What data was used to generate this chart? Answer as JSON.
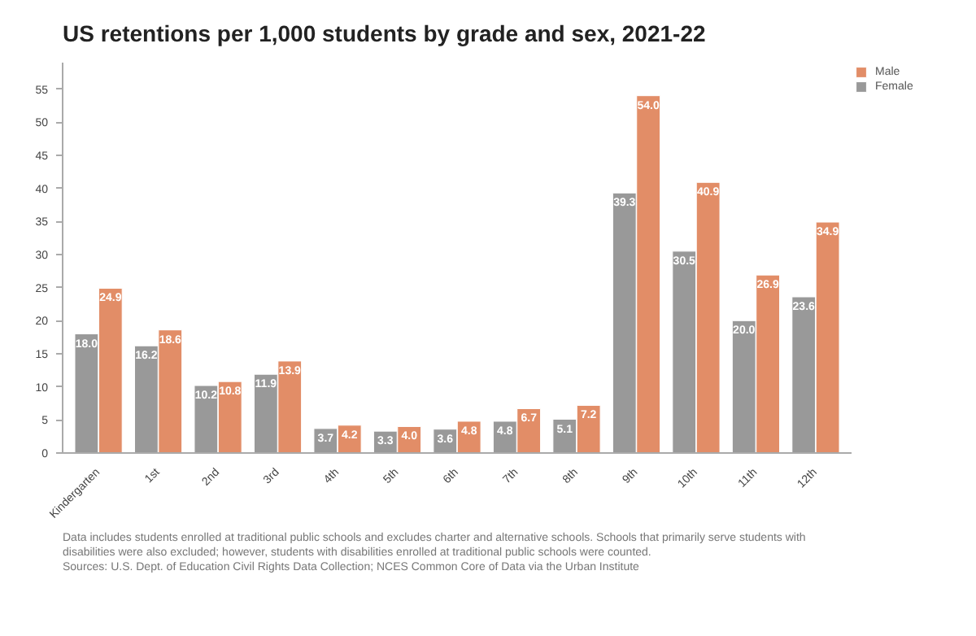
{
  "chart_data": {
    "type": "bar",
    "title": "US retentions per 1,000 students by grade and sex, 2021-22",
    "categories": [
      "Kindergarten",
      "1st",
      "2nd",
      "3rd",
      "4th",
      "5th",
      "6th",
      "7th",
      "8th",
      "9th",
      "10th",
      "11th",
      "12th"
    ],
    "series": [
      {
        "name": "Female",
        "color": "#999999",
        "values": [
          18.0,
          16.2,
          10.2,
          11.9,
          3.7,
          3.3,
          3.6,
          4.8,
          5.1,
          39.3,
          30.5,
          20.0,
          23.6
        ],
        "value_labels": [
          "18.0",
          "16.2",
          "10.2",
          "11.9",
          "3.7",
          "3.3",
          "3.6",
          "4.8",
          "5.1",
          "39.3",
          "30.5",
          "20.0",
          "23.6"
        ]
      },
      {
        "name": "Male",
        "color": "#e28d67",
        "values": [
          24.9,
          18.6,
          10.8,
          13.9,
          4.2,
          4.0,
          4.8,
          6.7,
          7.2,
          54.0,
          40.9,
          26.9,
          34.9
        ],
        "value_labels": [
          "24.9",
          "18.6",
          "10.8",
          "13.9",
          "4.2",
          "4.0",
          "4.8",
          "6.7",
          "7.2",
          "54.0",
          "40.9",
          "26.9",
          "34.9"
        ]
      }
    ],
    "ylim": [
      0,
      59
    ],
    "yticks": [
      0,
      5,
      10,
      15,
      20,
      25,
      30,
      35,
      40,
      45,
      50,
      55
    ],
    "grid": false,
    "legend": "top right",
    "annotations": [
      "Data includes students enrolled at traditional public schools and excludes charter and alternative schools. Schools that primarily serve students with disabilities were also excluded; however, students with disabilities enrolled at traditional public schools were counted.",
      "Sources: U.S. Dept. of Education Civil Rights Data Collection; NCES Common Core of Data via the Urban Institute"
    ]
  }
}
